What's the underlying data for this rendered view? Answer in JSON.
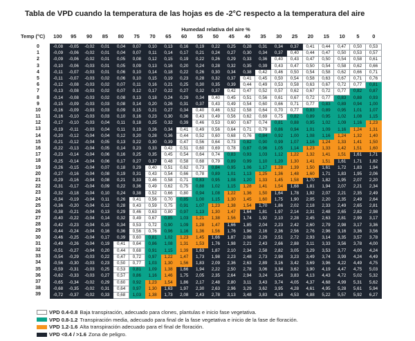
{
  "title": "Tabla de VPD cuando la temperatura de las hojas es de -2°C respecto a la temperatura del aire",
  "chart_data": {
    "type": "heatmap",
    "title": "Tabla de VPD cuando la temperatura de las hojas es de -2°C respecto a la temperatura del aire",
    "xlabel": "Humedad relativa del aire %",
    "ylabel": "Temp (°C)",
    "columns": [
      "100",
      "95",
      "90",
      "85",
      "80",
      "75",
      "70",
      "65",
      "60",
      "55",
      "50",
      "45",
      "40",
      "35",
      "30",
      "25",
      "20",
      "15",
      "10",
      "5",
      "0"
    ],
    "rows": [
      {
        "t": "0",
        "v": [
          "-0,08",
          "-0,05",
          "-0,02",
          "0,01",
          "0,04",
          "0,07",
          "0,10",
          "0,13",
          "0,16",
          "0,19",
          "0,22",
          "0,25",
          "0,28",
          "0,31",
          "0,34",
          "0,37",
          "0,41",
          "0,44",
          "0,47",
          "0,50",
          "0,53"
        ]
      },
      {
        "t": "1",
        "v": [
          "-0,09",
          "-0,06",
          "-0,02",
          "0,01",
          "0,04",
          "0,07",
          "0,11",
          "0,14",
          "0,17",
          "0,21",
          "0,24",
          "0,27",
          "0,30",
          "0,34",
          "0,37",
          "0,40",
          "0,44",
          "0,47",
          "0,50",
          "0,53",
          "0,57"
        ]
      },
      {
        "t": "2",
        "v": [
          "-0,09",
          "-0,06",
          "-0,02",
          "0,01",
          "0,05",
          "0,08",
          "0,12",
          "0,15",
          "0,19",
          "0,22",
          "0,26",
          "0,29",
          "0,33",
          "0,36",
          "0,40",
          "0,43",
          "0,47",
          "0,50",
          "0,54",
          "0,58",
          "0,61"
        ]
      },
      {
        "t": "3",
        "v": [
          "-0,10",
          "-0,06",
          "-0,03",
          "0,01",
          "0,05",
          "0,09",
          "0,13",
          "0,16",
          "0,20",
          "0,24",
          "0,28",
          "0,32",
          "0,35",
          "0,39",
          "0,43",
          "0,47",
          "0,50",
          "0,54",
          "0,58",
          "0,62",
          "0,66"
        ]
      },
      {
        "t": "4",
        "v": [
          "-0,11",
          "-0,07",
          "-0,03",
          "0,01",
          "0,06",
          "0,10",
          "0,14",
          "0,18",
          "0,22",
          "0,26",
          "0,30",
          "0,34",
          "0,38",
          "0,42",
          "0,46",
          "0,50",
          "0,54",
          "0,58",
          "0,62",
          "0,66",
          "0,71"
        ]
      },
      {
        "t": "5",
        "v": [
          "-0,11",
          "-0,07",
          "-0,03",
          "0,02",
          "0,06",
          "0,10",
          "0,15",
          "0,19",
          "0,23",
          "0,28",
          "0,32",
          "0,37",
          "0,41",
          "0,45",
          "0,50",
          "0,54",
          "0,58",
          "0,63",
          "0,67",
          "0,71",
          "0,76"
        ]
      },
      {
        "t": "6",
        "v": [
          "-0,12",
          "-0,08",
          "-0,03",
          "0,02",
          "0,07",
          "0,11",
          "0,16",
          "0,21",
          "0,25",
          "0,30",
          "0,35",
          "0,39",
          "0,44",
          "0,49",
          "0,53",
          "0,58",
          "0,63",
          "0,67",
          "0,72",
          "0,77",
          "0,81"
        ]
      },
      {
        "t": "7",
        "v": [
          "-0,13",
          "-0,08",
          "-0,03",
          "0,02",
          "0,07",
          "0,12",
          "0,17",
          "0,22",
          "0,27",
          "0,32",
          "0,37",
          "0,42",
          "0,47",
          "0,52",
          "0,57",
          "0,62",
          "0,67",
          "0,72",
          "0,77",
          "0,82",
          "0,87"
        ]
      },
      {
        "t": "8",
        "v": [
          "-0,14",
          "-0,08",
          "-0,03",
          "0,02",
          "0,08",
          "0,13",
          "0,18",
          "0,24",
          "0,29",
          "0,34",
          "0,40",
          "0,45",
          "0,51",
          "0,56",
          "0,61",
          "0,67",
          "0,72",
          "0,77",
          "0,83",
          "0,88",
          "0,93"
        ]
      },
      {
        "t": "9",
        "v": [
          "-0,15",
          "-0,09",
          "-0,03",
          "0,03",
          "0,08",
          "0,14",
          "0,20",
          "0,26",
          "0,31",
          "0,37",
          "0,43",
          "0,49",
          "0,54",
          "0,60",
          "0,66",
          "0,71",
          "0,77",
          "0,83",
          "0,89",
          "0,94",
          "1,00"
        ]
      },
      {
        "t": "10",
        "v": [
          "-0,16",
          "-0,09",
          "-0,03",
          "0,03",
          "0,09",
          "0,15",
          "0,21",
          "0,27",
          "0,34",
          "0,40",
          "0,46",
          "0,52",
          "0,58",
          "0,64",
          "0,70",
          "0,77",
          "0,83",
          "0,89",
          "0,95",
          "1,01",
          "1,07"
        ]
      },
      {
        "t": "11",
        "v": [
          "-0,16",
          "-0,10",
          "-0,03",
          "0,03",
          "0,10",
          "0,16",
          "0,23",
          "0,30",
          "0,36",
          "0,43",
          "0,49",
          "0,56",
          "0,62",
          "0,69",
          "0,75",
          "0,82",
          "0,89",
          "0,95",
          "1,02",
          "1,08",
          "1,15"
        ]
      },
      {
        "t": "12",
        "v": [
          "-0,17",
          "-0,10",
          "-0,03",
          "0,04",
          "0,11",
          "0,18",
          "0,25",
          "0,32",
          "0,39",
          "0,46",
          "0,53",
          "0,60",
          "0,67",
          "0,74",
          "0,81",
          "0,88",
          "0,95",
          "1,02",
          "1,09",
          "1,16",
          "1,23"
        ]
      },
      {
        "t": "13",
        "v": [
          "-0,19",
          "-0,11",
          "-0,03",
          "0,04",
          "0,11",
          "0,19",
          "0,26",
          "0,34",
          "0,41",
          "0,49",
          "0,56",
          "0,64",
          "0,71",
          "0,79",
          "0,86",
          "0,94",
          "1,01",
          "1,09",
          "1,16",
          "1,24",
          "1,31"
        ]
      },
      {
        "t": "14",
        "v": [
          "-0,20",
          "-0,12",
          "-0,04",
          "0,04",
          "0,12",
          "0,20",
          "0,28",
          "0,36",
          "0,44",
          "0,52",
          "0,60",
          "0,68",
          "0,76",
          "0,84",
          "0,92",
          "1,00",
          "1,08",
          "1,16",
          "1,24",
          "1,32",
          "1,40"
        ]
      },
      {
        "t": "15",
        "v": [
          "-0,21",
          "-0,12",
          "-0,04",
          "0,05",
          "0,13",
          "0,22",
          "0,30",
          "0,39",
          "0,47",
          "0,56",
          "0,64",
          "0,73",
          "0,82",
          "0,90",
          "0,99",
          "1,07",
          "1,16",
          "1,24",
          "1,33",
          "1,41",
          "1,50"
        ]
      },
      {
        "t": "16",
        "v": [
          "-0,22",
          "-0,13",
          "-0,04",
          "0,05",
          "0,14",
          "0,23",
          "0,33",
          "0,42",
          "0,51",
          "0,60",
          "0,69",
          "0,78",
          "0,87",
          "0,96",
          "1,05",
          "1,14",
          "1,23",
          "1,33",
          "1,42",
          "1,51",
          "1,60"
        ]
      },
      {
        "t": "17",
        "v": [
          "-0,23",
          "-0,14",
          "-0,04",
          "0,06",
          "0,16",
          "0,25",
          "0,35",
          "0,45",
          "0,54",
          "0,64",
          "0,74",
          "0,83",
          "0,93",
          "1,03",
          "1,12",
          "1,22",
          "1,32",
          "1,41",
          "1,51",
          "1,61",
          "1,71"
        ]
      },
      {
        "t": "18",
        "v": [
          "-0,25",
          "-0,14",
          "-0,04",
          "0,06",
          "0,17",
          "0,27",
          "0,37",
          "0,48",
          "0,58",
          "0,68",
          "0,79",
          "0,89",
          "0,99",
          "1,10",
          "1,20",
          "1,30",
          "1,41",
          "1,51",
          "1,61",
          "1,71",
          "1,82"
        ]
      },
      {
        "t": "19",
        "v": [
          "-0,26",
          "-0,15",
          "-0,04",
          "0,07",
          "0,18",
          "0,29",
          "0,40",
          "0,51",
          "0,62",
          "0,73",
          "0,84",
          "0,95",
          "1,06",
          "1,17",
          "1,28",
          "1,39",
          "1,50",
          "1,61",
          "1,72",
          "1,83",
          "1,94"
        ]
      },
      {
        "t": "20",
        "v": [
          "-0,27",
          "-0,16",
          "-0,04",
          "0,08",
          "0,19",
          "0,31",
          "0,43",
          "0,54",
          "0,66",
          "0,78",
          "0,89",
          "1,01",
          "1,13",
          "1,25",
          "1,36",
          "1,48",
          "1,60",
          "1,71",
          "1,83",
          "1,95",
          "2,06"
        ]
      },
      {
        "t": "21",
        "v": [
          "-0,29",
          "-0,16",
          "-0,04",
          "0,08",
          "0,21",
          "0,33",
          "0,46",
          "0,58",
          "0,71",
          "0,83",
          "0,95",
          "1,08",
          "1,20",
          "1,33",
          "1,45",
          "1,58",
          "1,70",
          "1,82",
          "1,95",
          "2,07",
          "2,20"
        ]
      },
      {
        "t": "22",
        "v": [
          "-0,31",
          "-0,17",
          "-0,04",
          "0,09",
          "0,22",
          "0,36",
          "0,49",
          "0,62",
          "0,75",
          "0,88",
          "1,02",
          "1,15",
          "1,28",
          "1,41",
          "1,54",
          "1,68",
          "1,81",
          "1,94",
          "2,07",
          "2,21",
          "2,34"
        ]
      },
      {
        "t": "23",
        "v": [
          "-0,32",
          "-0,18",
          "-0,04",
          "0,10",
          "0,24",
          "0,38",
          "0,52",
          "0,66",
          "0,80",
          "0,94",
          "1,08",
          "1,22",
          "1,36",
          "1,50",
          "1,64",
          "1,78",
          "1,92",
          "2,07",
          "2,21",
          "2,35",
          "2,49"
        ]
      },
      {
        "t": "24",
        "v": [
          "-0,34",
          "-0,19",
          "-0,04",
          "0,11",
          "0,26",
          "0,41",
          "0,56",
          "0,70",
          "0,85",
          "1,00",
          "1,15",
          "1,30",
          "1,45",
          "1,60",
          "1,75",
          "1,90",
          "2,05",
          "2,20",
          "2,35",
          "2,49",
          "2,64"
        ]
      },
      {
        "t": "25",
        "v": [
          "-0,36",
          "-0,20",
          "-0,04",
          "0,12",
          "0,28",
          "0,43",
          "0,59",
          "0,75",
          "0,91",
          "1,07",
          "1,23",
          "1,38",
          "1,54",
          "1,70",
          "1,86",
          "2,02",
          "2,18",
          "2,33",
          "2,49",
          "2,65",
          "2,81"
        ]
      },
      {
        "t": "26",
        "v": [
          "-0,38",
          "-0,21",
          "-0,04",
          "0,13",
          "0,29",
          "0,46",
          "0,63",
          "0,80",
          "0,97",
          "1,13",
          "1,30",
          "1,47",
          "1,64",
          "1,81",
          "1,97",
          "2,14",
          "2,31",
          "2,48",
          "2,65",
          "2,82",
          "2,98"
        ]
      },
      {
        "t": "27",
        "v": [
          "-0,40",
          "-0,22",
          "-0,04",
          "0,14",
          "0,32",
          "0,49",
          "0,67",
          "0,85",
          "1,03",
          "1,21",
          "1,38",
          "1,56",
          "1,74",
          "1,92",
          "2,10",
          "2,28",
          "2,45",
          "2,63",
          "2,81",
          "2,99",
          "3,17"
        ]
      },
      {
        "t": "28",
        "v": [
          "-0,42",
          "-0,23",
          "-0,04",
          "0,15",
          "0,34",
          "0,53",
          "0,72",
          "0,90",
          "1,09",
          "1,28",
          "1,47",
          "1,66",
          "1,85",
          "2,04",
          "2,23",
          "2,42",
          "2,60",
          "2,79",
          "2,98",
          "3,17",
          "3,36"
        ]
      },
      {
        "t": "29",
        "v": [
          "-0,44",
          "-0,24",
          "-0,04",
          "0,16",
          "0,36",
          "0,56",
          "0,76",
          "0,96",
          "1,16",
          "1,36",
          "1,56",
          "1,76",
          "1,96",
          "2,16",
          "2,36",
          "2,56",
          "2,76",
          "2,96",
          "3,16",
          "3,36",
          "3,56"
        ]
      },
      {
        "t": "30",
        "v": [
          "-0,46",
          "-0,25",
          "-0,04",
          "0,17",
          "0,39",
          "0,60",
          "0,81",
          "1,02",
          "1,23",
          "1,45",
          "1,66",
          "1,87",
          "2,08",
          "2,29",
          "2,51",
          "2,72",
          "2,93",
          "3,14",
          "3,35",
          "3,57",
          "3,78"
        ]
      },
      {
        "t": "31",
        "v": [
          "-0,49",
          "-0,26",
          "-0,04",
          "0,19",
          "0,41",
          "0,64",
          "0,86",
          "1,08",
          "1,31",
          "1,53",
          "1,76",
          "1,98",
          "2,21",
          "2,43",
          "2,66",
          "2,88",
          "3,11",
          "3,33",
          "3,56",
          "3,78",
          "4,00"
        ]
      },
      {
        "t": "32",
        "v": [
          "-0,51",
          "-0,27",
          "-0,04",
          "0,20",
          "0,44",
          "0,68",
          "0,91",
          "1,15",
          "1,39",
          "1,63",
          "1,87",
          "2,10",
          "2,34",
          "2,58",
          "2,82",
          "3,05",
          "3,29",
          "3,53",
          "3,77",
          "4,00",
          "4,24"
        ]
      },
      {
        "t": "33",
        "v": [
          "-0,54",
          "-0,29",
          "-0,03",
          "0,22",
          "0,47",
          "0,72",
          "0,97",
          "1,22",
          "1,47",
          "1,73",
          "1,98",
          "2,23",
          "2,48",
          "2,73",
          "2,98",
          "3,23",
          "3,49",
          "3,74",
          "3,99",
          "4,24",
          "4,49"
        ]
      },
      {
        "t": "34",
        "v": [
          "-0,56",
          "-0,30",
          "-0,03",
          "0,23",
          "0,50",
          "0,77",
          "1,03",
          "1,30",
          "1,56",
          "1,83",
          "2,09",
          "2,36",
          "2,63",
          "2,89",
          "3,16",
          "3,42",
          "3,69",
          "3,96",
          "4,22",
          "4,49",
          "4,75"
        ]
      },
      {
        "t": "35",
        "v": [
          "-0,59",
          "-0,31",
          "-0,03",
          "0,25",
          "0,53",
          "0,81",
          "1,09",
          "1,38",
          "1,66",
          "1,94",
          "2,22",
          "2,50",
          "2,78",
          "3,06",
          "3,34",
          "3,62",
          "3,90",
          "4,19",
          "4,47",
          "4,75",
          "5,03"
        ]
      },
      {
        "t": "36",
        "v": [
          "-0,62",
          "-0,33",
          "-0,03",
          "0,27",
          "0,57",
          "0,86",
          "1,16",
          "1,46",
          "1,75",
          "2,05",
          "2,35",
          "2,64",
          "2,94",
          "3,24",
          "3,54",
          "3,83",
          "4,13",
          "4,43",
          "4,72",
          "5,02",
          "5,32"
        ]
      },
      {
        "t": "37",
        "v": [
          "-0,65",
          "-0,34",
          "-0,02",
          "0,29",
          "0,60",
          "0,92",
          "1,23",
          "1,54",
          "1,86",
          "2,17",
          "2,48",
          "2,80",
          "3,11",
          "3,43",
          "3,74",
          "4,05",
          "4,37",
          "4,68",
          "4,99",
          "5,31",
          "5,62"
        ]
      },
      {
        "t": "38",
        "v": [
          "-0,68",
          "-0,35",
          "-0,02",
          "0,31",
          "0,64",
          "0,97",
          "1,30",
          "1,63",
          "1,97",
          "2,30",
          "2,63",
          "2,96",
          "3,29",
          "3,62",
          "3,95",
          "4,28",
          "4,61",
          "4,95",
          "5,28",
          "5,61",
          "5,94"
        ]
      },
      {
        "t": "39",
        "v": [
          "-0,72",
          "-0,37",
          "-0,02",
          "0,33",
          "0,68",
          "1,03",
          "1,38",
          "1,73",
          "2,08",
          "2,43",
          "2,78",
          "3,13",
          "3,48",
          "3,83",
          "4,18",
          "4,53",
          "4,88",
          "5,22",
          "5,57",
          "5,92",
          "6,27"
        ]
      }
    ],
    "colors": {
      "dark": "#1e2530",
      "white": "#ffffff",
      "teal": "#0aa38b",
      "orange": "#f7941d"
    },
    "legend": [
      {
        "key": "white",
        "range": "VPD 0.4-0.8",
        "text": "Baja transpiración, adecuado para clones, plantulas e inicio fase vegetativa.",
        "min": 0.4,
        "max": 0.8
      },
      {
        "key": "teal",
        "range": "VPD 0.8-1.2",
        "text": "Transpiración media, adecuado para final de la fase vegetativa e inicio de la fase de floración.",
        "min": 0.8,
        "max": 1.2
      },
      {
        "key": "orange",
        "range": "VPD 1.2-1.6",
        "text": "Alta transpiración adecuado para el final de floración.",
        "min": 1.2,
        "max": 1.6
      },
      {
        "key": "dark",
        "range": "VPD <0.4 / >1.6",
        "text": "Zona de peligro."
      }
    ]
  }
}
